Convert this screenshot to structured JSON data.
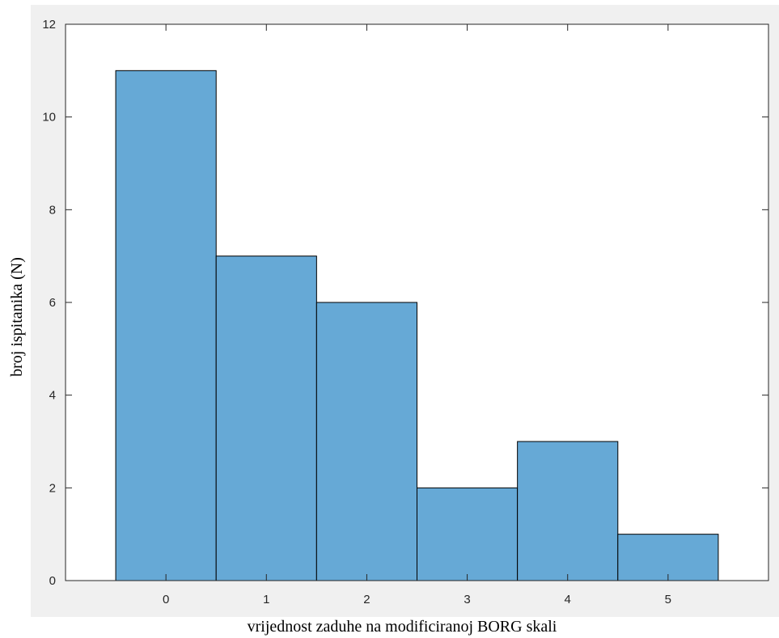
{
  "chart_data": {
    "type": "bar",
    "title": "",
    "xlabel": "vrijednost zaduhe na modificiranoj BORG skali",
    "ylabel": "broj ispitanika (N)",
    "categories": [
      "0",
      "1",
      "2",
      "3",
      "4",
      "5"
    ],
    "values": [
      11,
      7,
      6,
      2,
      3,
      1
    ],
    "xlim": [
      -1,
      6
    ],
    "ylim": [
      0,
      12
    ],
    "yticks": [
      "0",
      "2",
      "4",
      "6",
      "8",
      "10",
      "12"
    ],
    "grid": false,
    "legend": "none",
    "bar_color": "#66a9d6",
    "bar_edge_color": "#000000",
    "figure_background": "#f0f0f0",
    "axes_background": "#ffffff"
  }
}
